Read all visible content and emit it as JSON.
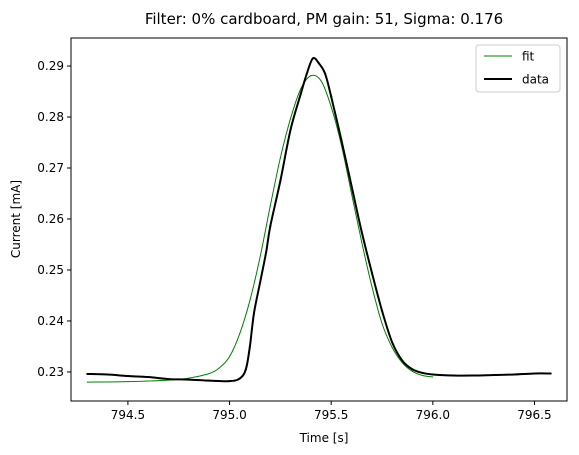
{
  "chart_data": {
    "type": "line",
    "title": "Filter: 0% cardboard, PM gain: 51, Sigma: 0.176",
    "xlabel": "Time [s]",
    "ylabel": "Current [mA]",
    "xlim": [
      794.22,
      796.66
    ],
    "ylim": [
      0.2243,
      0.2955
    ],
    "xticks": [
      794.5,
      795.0,
      795.5,
      796.0,
      796.5
    ],
    "xtick_labels": [
      "794.5",
      "795.0",
      "795.5",
      "796.0",
      "796.5"
    ],
    "yticks": [
      0.23,
      0.24,
      0.25,
      0.26,
      0.27,
      0.28,
      0.29
    ],
    "ytick_labels": [
      "0.23",
      "0.24",
      "0.25",
      "0.26",
      "0.27",
      "0.28",
      "0.29"
    ],
    "grid": false,
    "legend_position": "upper right",
    "series": [
      {
        "name": "fit",
        "color": "#008000",
        "x": [
          794.3,
          794.5,
          794.7,
          794.8,
          794.9,
          794.95,
          795.0,
          795.05,
          795.1,
          795.15,
          795.2,
          795.25,
          795.3,
          795.35,
          795.4,
          795.45,
          795.5,
          795.55,
          795.6,
          795.65,
          795.7,
          795.75,
          795.8,
          795.85,
          795.9,
          795.95,
          796.0
        ],
        "y": [
          0.228,
          0.2281,
          0.2284,
          0.2288,
          0.2297,
          0.2308,
          0.233,
          0.2375,
          0.244,
          0.2525,
          0.2625,
          0.272,
          0.2797,
          0.2855,
          0.2881,
          0.2871,
          0.282,
          0.2745,
          0.265,
          0.2555,
          0.2468,
          0.2395,
          0.2348,
          0.2318,
          0.2301,
          0.2293,
          0.229
        ]
      },
      {
        "name": "data",
        "color": "#000000",
        "x": [
          794.3,
          794.4,
          794.5,
          794.6,
          794.7,
          794.8,
          794.9,
          795.0,
          795.05,
          795.08,
          795.1,
          795.12,
          795.15,
          795.18,
          795.2,
          795.25,
          795.3,
          795.35,
          795.38,
          795.41,
          795.44,
          795.47,
          795.5,
          795.55,
          795.6,
          795.65,
          795.7,
          795.75,
          795.8,
          795.85,
          795.9,
          795.95,
          796.0,
          796.1,
          796.2,
          796.3,
          796.4,
          796.5,
          796.58
        ],
        "y": [
          0.2296,
          0.2295,
          0.2292,
          0.229,
          0.2286,
          0.2285,
          0.2283,
          0.2282,
          0.2287,
          0.2305,
          0.235,
          0.2415,
          0.2475,
          0.2535,
          0.2585,
          0.2675,
          0.2775,
          0.2845,
          0.2885,
          0.2915,
          0.2905,
          0.2885,
          0.284,
          0.2755,
          0.2665,
          0.2575,
          0.2495,
          0.242,
          0.2358,
          0.2322,
          0.2305,
          0.2298,
          0.2295,
          0.2293,
          0.2293,
          0.2294,
          0.2295,
          0.2297,
          0.2297
        ]
      }
    ]
  }
}
